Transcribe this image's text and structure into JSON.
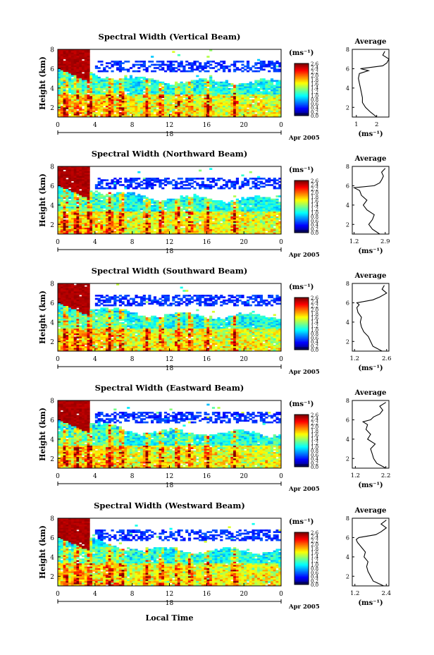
{
  "figure": {
    "xlabel_bottom": "Local Time",
    "colorbar_unit": "(ms⁻¹)",
    "avg_title": "Average",
    "avg_xunit": "(ms⁻¹)",
    "date_day": "18",
    "date_label": "Apr 2005"
  },
  "chart_data": [
    {
      "type": "heatmap",
      "title": "Spectral Width (Vertical Beam)",
      "ylabel": "Height (km)",
      "xlim": [
        0,
        24
      ],
      "ylim": [
        1,
        8
      ],
      "x_ticks": [
        "0",
        "4",
        "8",
        "12",
        "16",
        "20",
        "0"
      ],
      "y_ticks": [
        "8",
        "6",
        "4",
        "2"
      ],
      "colorbar_ticks": [
        "2.6",
        "2.4",
        "2.2",
        "2.0",
        "1.8",
        "1.6",
        "1.4",
        "1.2",
        "1.0",
        "0.8",
        "0.6",
        "0.4",
        "0.2",
        "0.0"
      ],
      "avg_profile": {
        "xlim": [
          0.8,
          2.6
        ],
        "x_ticks": [
          "1",
          "2"
        ],
        "y_ticks": [
          "8",
          "6",
          "4",
          "2"
        ],
        "height_km": [
          1.0,
          1.5,
          2.0,
          2.5,
          3.0,
          3.5,
          4.0,
          4.5,
          5.0,
          5.5,
          5.8,
          6.0,
          6.3,
          6.6,
          7.0,
          7.4,
          7.8
        ],
        "width_ms": [
          2.0,
          1.7,
          1.45,
          1.3,
          1.3,
          1.25,
          1.2,
          1.15,
          1.1,
          1.15,
          1.6,
          1.2,
          2.3,
          2.5,
          2.6,
          2.3,
          2.4
        ]
      }
    },
    {
      "type": "heatmap",
      "title": "Spectral Width (Northward Beam)",
      "ylabel": "Height (km)",
      "xlim": [
        0,
        24
      ],
      "ylim": [
        1,
        8
      ],
      "x_ticks": [
        "0",
        "4",
        "8",
        "12",
        "16",
        "20",
        "0"
      ],
      "y_ticks": [
        "8",
        "6",
        "4",
        "2"
      ],
      "colorbar_ticks": [
        "2.6",
        "2.4",
        "2.2",
        "2.0",
        "1.8",
        "1.6",
        "1.4",
        "1.2",
        "1.0",
        "0.8",
        "0.6",
        "0.4",
        "0.2",
        "0.0"
      ],
      "avg_profile": {
        "xlim": [
          1.1,
          3.1
        ],
        "x_ticks": [
          "1.2",
          "2.9"
        ],
        "y_ticks": [
          "8",
          "6",
          "4",
          "2"
        ],
        "height_km": [
          1.0,
          1.5,
          2.0,
          2.5,
          3.0,
          3.5,
          4.0,
          4.5,
          5.0,
          5.5,
          5.8,
          6.0,
          6.3,
          6.6,
          7.0,
          7.4,
          7.8
        ],
        "width_ms": [
          2.6,
          2.2,
          2.0,
          2.2,
          2.3,
          1.9,
          1.7,
          1.9,
          1.6,
          1.5,
          1.2,
          2.3,
          2.6,
          2.7,
          2.8,
          2.7,
          2.9
        ]
      }
    },
    {
      "type": "heatmap",
      "title": "Spectral Width (Southward Beam)",
      "ylabel": "Height (km)",
      "xlim": [
        0,
        24
      ],
      "ylim": [
        1,
        8
      ],
      "x_ticks": [
        "0",
        "4",
        "8",
        "12",
        "16",
        "20",
        "0"
      ],
      "y_ticks": [
        "8",
        "6",
        "4",
        "2"
      ],
      "colorbar_ticks": [
        "2.6",
        "2.4",
        "2.2",
        "2.0",
        "1.8",
        "1.6",
        "1.4",
        "1.2",
        "1.0",
        "0.8",
        "0.6",
        "0.4",
        "0.2",
        "0.0"
      ],
      "avg_profile": {
        "xlim": [
          1.1,
          2.7
        ],
        "x_ticks": [
          "1.2",
          "2.6"
        ],
        "y_ticks": [
          "8",
          "6",
          "4",
          "2"
        ],
        "height_km": [
          1.0,
          1.5,
          2.0,
          2.5,
          3.0,
          3.5,
          4.0,
          4.5,
          5.0,
          5.5,
          5.8,
          6.0,
          6.3,
          6.6,
          7.0,
          7.4,
          7.8
        ],
        "width_ms": [
          2.4,
          2.0,
          1.9,
          1.8,
          1.6,
          1.5,
          1.45,
          1.5,
          1.35,
          1.3,
          1.4,
          1.3,
          2.0,
          2.3,
          2.6,
          2.4,
          2.5
        ]
      }
    },
    {
      "type": "heatmap",
      "title": "Spectral Width (Eastward Beam)",
      "ylabel": "Height (km)",
      "xlim": [
        0,
        24
      ],
      "ylim": [
        1,
        8
      ],
      "x_ticks": [
        "0",
        "4",
        "8",
        "12",
        "16",
        "20",
        "0"
      ],
      "y_ticks": [
        "8",
        "6",
        "4",
        "2"
      ],
      "colorbar_ticks": [
        "2.6",
        "2.4",
        "2.2",
        "2.0",
        "1.8",
        "1.6",
        "1.4",
        "1.2",
        "1.0",
        "0.8",
        "0.6",
        "0.4",
        "0.2",
        "0.0"
      ],
      "avg_profile": {
        "xlim": [
          1.1,
          2.3
        ],
        "x_ticks": [
          "1.2",
          "2.2"
        ],
        "y_ticks": [
          "8",
          "6",
          "4",
          "2"
        ],
        "height_km": [
          1.0,
          1.5,
          2.0,
          2.5,
          3.0,
          3.5,
          4.0,
          4.5,
          5.0,
          5.5,
          5.8,
          6.0,
          6.3,
          6.6,
          7.0,
          7.4,
          7.8
        ],
        "width_ms": [
          2.2,
          1.9,
          1.8,
          1.75,
          1.7,
          1.85,
          1.6,
          1.7,
          1.55,
          1.6,
          1.45,
          1.7,
          1.8,
          2.0,
          2.1,
          2.0,
          2.2
        ]
      }
    },
    {
      "type": "heatmap",
      "title": "Spectral Width (Westward Beam)",
      "ylabel": "Height (km)",
      "xlim": [
        0,
        24
      ],
      "ylim": [
        1,
        8
      ],
      "x_ticks": [
        "0",
        "4",
        "8",
        "12",
        "16",
        "20",
        "0"
      ],
      "y_ticks": [
        "8",
        "6",
        "4",
        "2"
      ],
      "colorbar_ticks": [
        "2.6",
        "2.4",
        "2.2",
        "2.0",
        "1.8",
        "1.6",
        "1.4",
        "1.2",
        "1.0",
        "0.8",
        "0.6",
        "0.4",
        "0.2",
        "0.0"
      ],
      "avg_profile": {
        "xlim": [
          1.1,
          2.5
        ],
        "x_ticks": [
          "1.2",
          "2.4"
        ],
        "y_ticks": [
          "8",
          "6",
          "4",
          "2"
        ],
        "height_km": [
          1.0,
          1.5,
          2.0,
          2.5,
          3.0,
          3.5,
          4.0,
          4.5,
          5.0,
          5.5,
          5.8,
          6.0,
          6.3,
          6.6,
          7.0,
          7.4,
          7.8
        ],
        "width_ms": [
          2.3,
          1.9,
          1.8,
          1.7,
          1.65,
          1.7,
          1.55,
          1.6,
          1.45,
          1.3,
          1.25,
          1.35,
          2.0,
          2.2,
          2.4,
          2.2,
          2.4
        ]
      }
    }
  ]
}
